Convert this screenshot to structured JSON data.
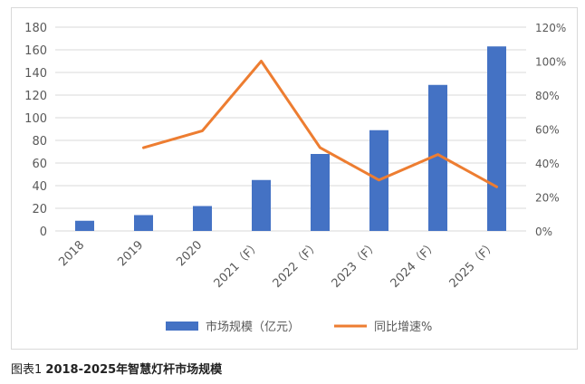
{
  "chart_data": {
    "type": "bar",
    "categories": [
      "2018",
      "2019",
      "2020",
      "2021（F）",
      "2022（F）",
      "2023（F）",
      "2024（F）",
      "2025（F）"
    ],
    "series": [
      {
        "name": "市场规模（亿元）",
        "type": "bar",
        "axis": "left",
        "values": [
          9,
          14,
          22,
          45,
          68,
          89,
          129,
          163
        ]
      },
      {
        "name": "同比增速%",
        "type": "line",
        "axis": "right",
        "values": [
          null,
          49,
          59,
          100,
          49,
          30,
          45,
          26
        ]
      }
    ],
    "y_left": {
      "ylim": [
        0,
        180
      ],
      "ticks": [
        "0",
        "20",
        "40",
        "60",
        "80",
        "100",
        "120",
        "140",
        "160",
        "180"
      ]
    },
    "y_right": {
      "ylim": [
        0,
        120
      ],
      "ticks": [
        "0%",
        "20%",
        "40%",
        "60%",
        "80%",
        "100%",
        "120%"
      ]
    },
    "grid": true,
    "legend": "bottom",
    "colors": {
      "bar": "#4472C4",
      "line": "#ED7D31",
      "grid": "#d9d9d9",
      "tick_text": "#595959"
    }
  },
  "caption": {
    "prefix": "图表1 ",
    "title": "2018-2025年智慧灯杆市场规模"
  }
}
